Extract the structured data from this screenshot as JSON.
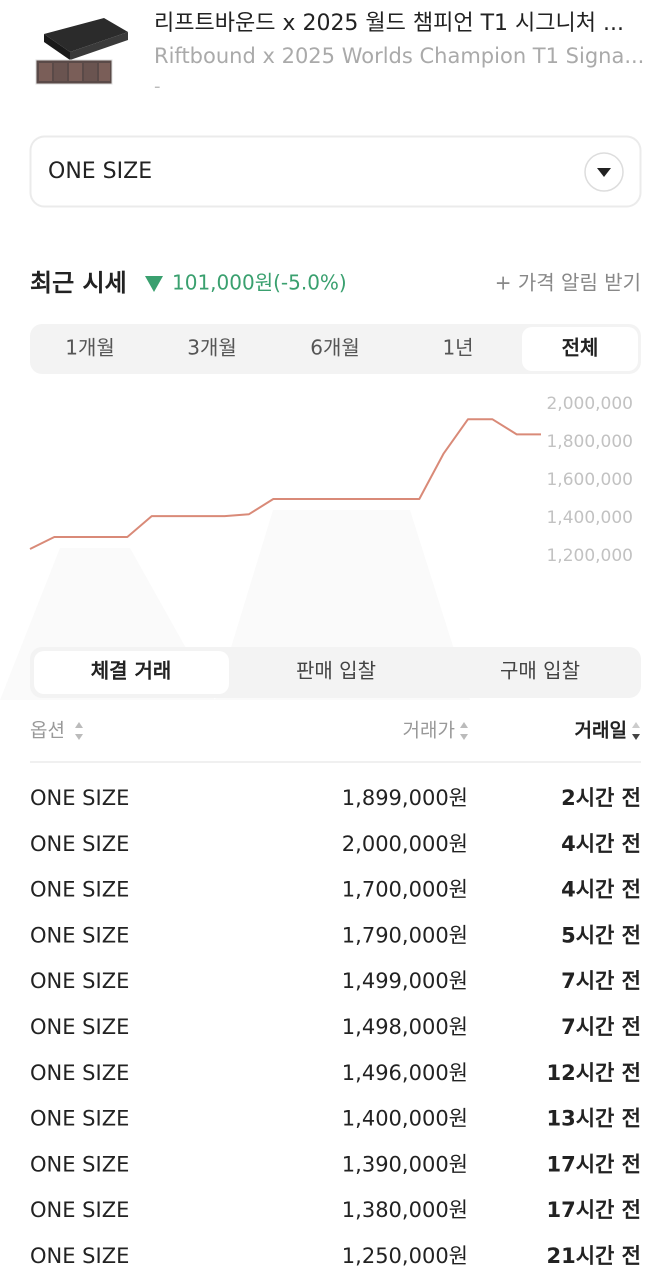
{
  "product": {
    "title": "리프트바운드 x 2025 월드 챔피언 T1 시그니처 ...",
    "subtitle": "Riftbound x 2025 Worlds Champion T1 Signa...",
    "note": "-"
  },
  "size_select": "ONE SIZE",
  "price_summary": {
    "label": "최근 시세",
    "change": "101,000원(-5.0%)",
    "alert": "+ 가격 알림 받기"
  },
  "period_tabs": [
    "1개월",
    "3개월",
    "6개월",
    "1년",
    "전체"
  ],
  "chart_data": {
    "type": "line",
    "categories": [
      null,
      null,
      null,
      null,
      null,
      null,
      null,
      null,
      null,
      null,
      null,
      null,
      null,
      null,
      null,
      null,
      null,
      null,
      null,
      null,
      null,
      null
    ],
    "values": [
      1237000,
      1300000,
      1300000,
      1300000,
      1300000,
      1410000,
      1410000,
      1410000,
      1410000,
      1420000,
      1500000,
      1500000,
      1500000,
      1500000,
      1500000,
      1500000,
      1500000,
      1740000,
      1920000,
      1920000,
      1840000,
      1840000
    ],
    "color": "#d98a78",
    "ylim": [
      1200000,
      2000000
    ],
    "yticks": [
      {
        "value": 1200000,
        "label": "1,200,000"
      },
      {
        "value": 1400000,
        "label": "1,400,000"
      },
      {
        "value": 1600000,
        "label": "1,600,000"
      },
      {
        "value": 1800000,
        "label": "1,800,000"
      },
      {
        "value": 2000000,
        "label": "2,000,000"
      }
    ]
  },
  "trade_tabs": [
    "체결 거래",
    "판매 입찰",
    "구매 입찰"
  ],
  "table": {
    "header": [
      "옵션",
      "거래가",
      "거래일"
    ],
    "rows": [
      [
        "ONE SIZE",
        "1,899,000원",
        "2시간 전"
      ],
      [
        "ONE SIZE",
        "2,000,000원",
        "4시간 전"
      ],
      [
        "ONE SIZE",
        "1,700,000원",
        "4시간 전"
      ],
      [
        "ONE SIZE",
        "1,790,000원",
        "5시간 전"
      ],
      [
        "ONE SIZE",
        "1,499,000원",
        "7시간 전"
      ],
      [
        "ONE SIZE",
        "1,498,000원",
        "7시간 전"
      ],
      [
        "ONE SIZE",
        "1,496,000원",
        "12시간 전"
      ],
      [
        "ONE SIZE",
        "1,400,000원",
        "13시간 전"
      ],
      [
        "ONE SIZE",
        "1,390,000원",
        "17시간 전"
      ],
      [
        "ONE SIZE",
        "1,380,000원",
        "17시간 전"
      ],
      [
        "ONE SIZE",
        "1,250,000원",
        "21시간 전"
      ]
    ]
  }
}
